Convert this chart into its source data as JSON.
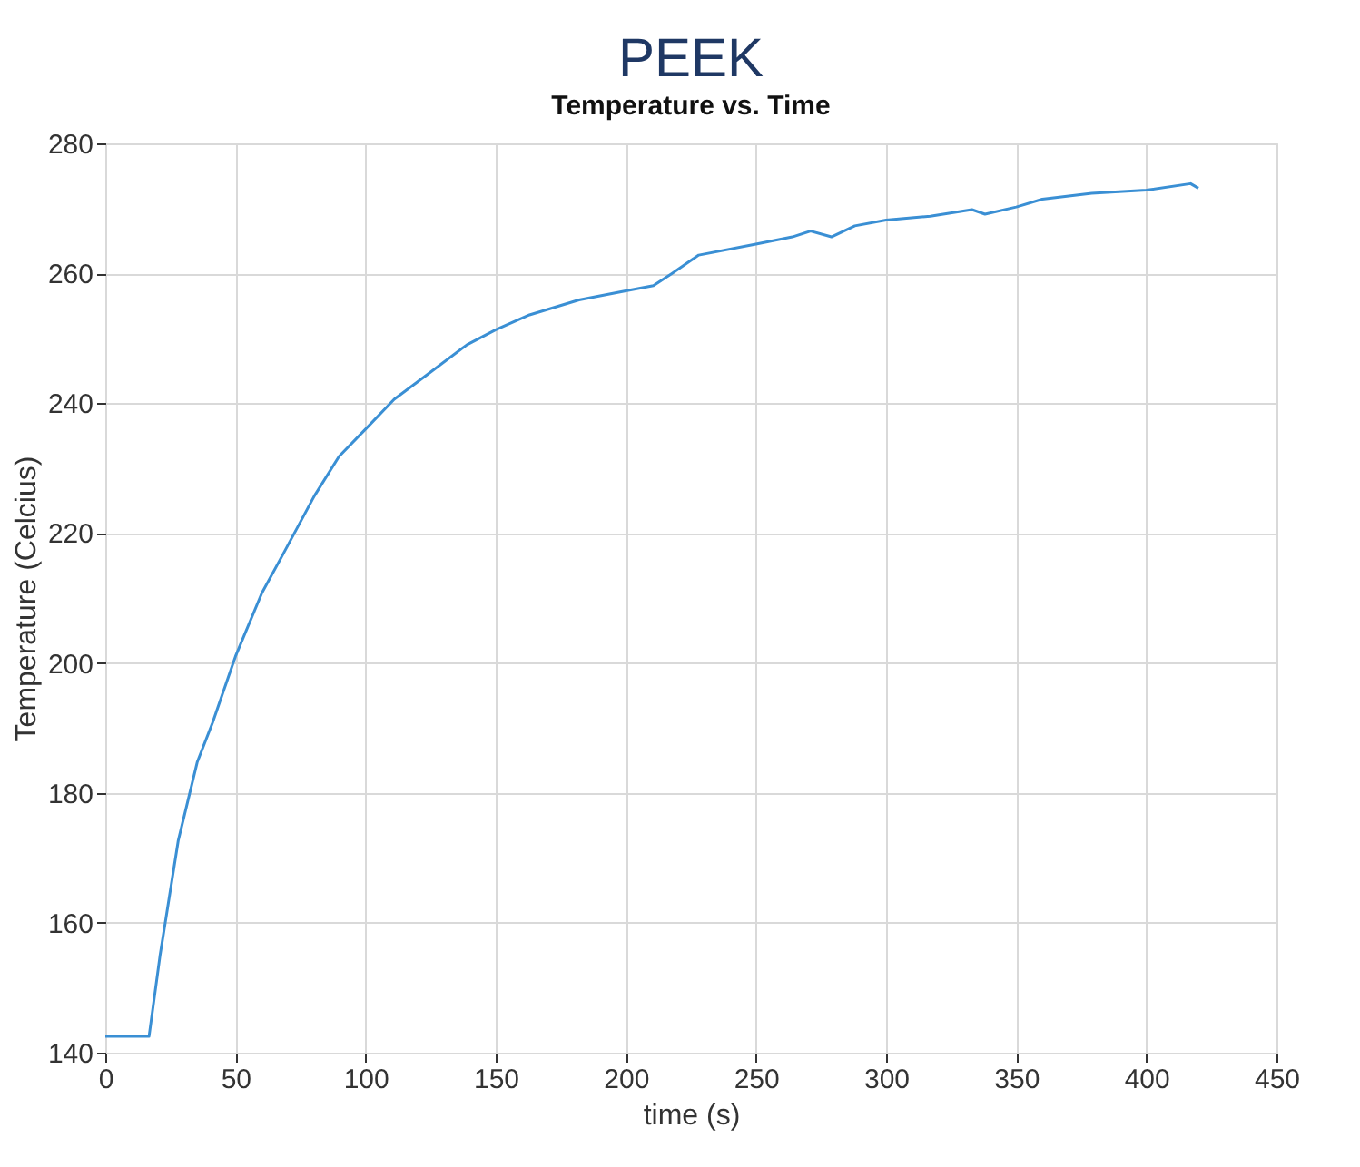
{
  "chart_data": {
    "type": "line",
    "title": "PEEK",
    "subtitle": "Temperature vs. Time",
    "xlabel": "time (s)",
    "ylabel": "Temperature (Celcius)",
    "xlim": [
      0,
      450
    ],
    "xticks": [
      0,
      50,
      100,
      150,
      200,
      250,
      300,
      350,
      400,
      450
    ],
    "ylim": [
      140,
      280
    ],
    "yticks": [
      140,
      160,
      180,
      200,
      220,
      240,
      260,
      280
    ],
    "grid": true,
    "marker": "none",
    "line_style": "solid",
    "series": [
      {
        "color": "#3a8fd4",
        "x": [
          0,
          16.8,
          21,
          28,
          35.3,
          41.2,
          50,
          60.2,
          68.5,
          80.3,
          89.8,
          100,
          111,
          125,
          139,
          150,
          163,
          182,
          200,
          210.6,
          217.8,
          228,
          250,
          264,
          271,
          279,
          288,
          300,
          317,
          333,
          338,
          350,
          360,
          379,
          400,
          417,
          420
        ],
        "values": [
          142.5,
          142.5,
          154.9,
          172.6,
          184.7,
          190.8,
          201,
          210.8,
          216.9,
          225.7,
          231.8,
          236,
          240.6,
          244.8,
          249,
          251.3,
          253.6,
          255.9,
          257.3,
          258.1,
          260,
          262.8,
          264.5,
          265.6,
          266.5,
          265.6,
          267.3,
          268.2,
          268.8,
          269.8,
          269.1,
          270.2,
          271.4,
          272.3,
          272.8,
          273.8,
          273.1
        ]
      }
    ]
  }
}
